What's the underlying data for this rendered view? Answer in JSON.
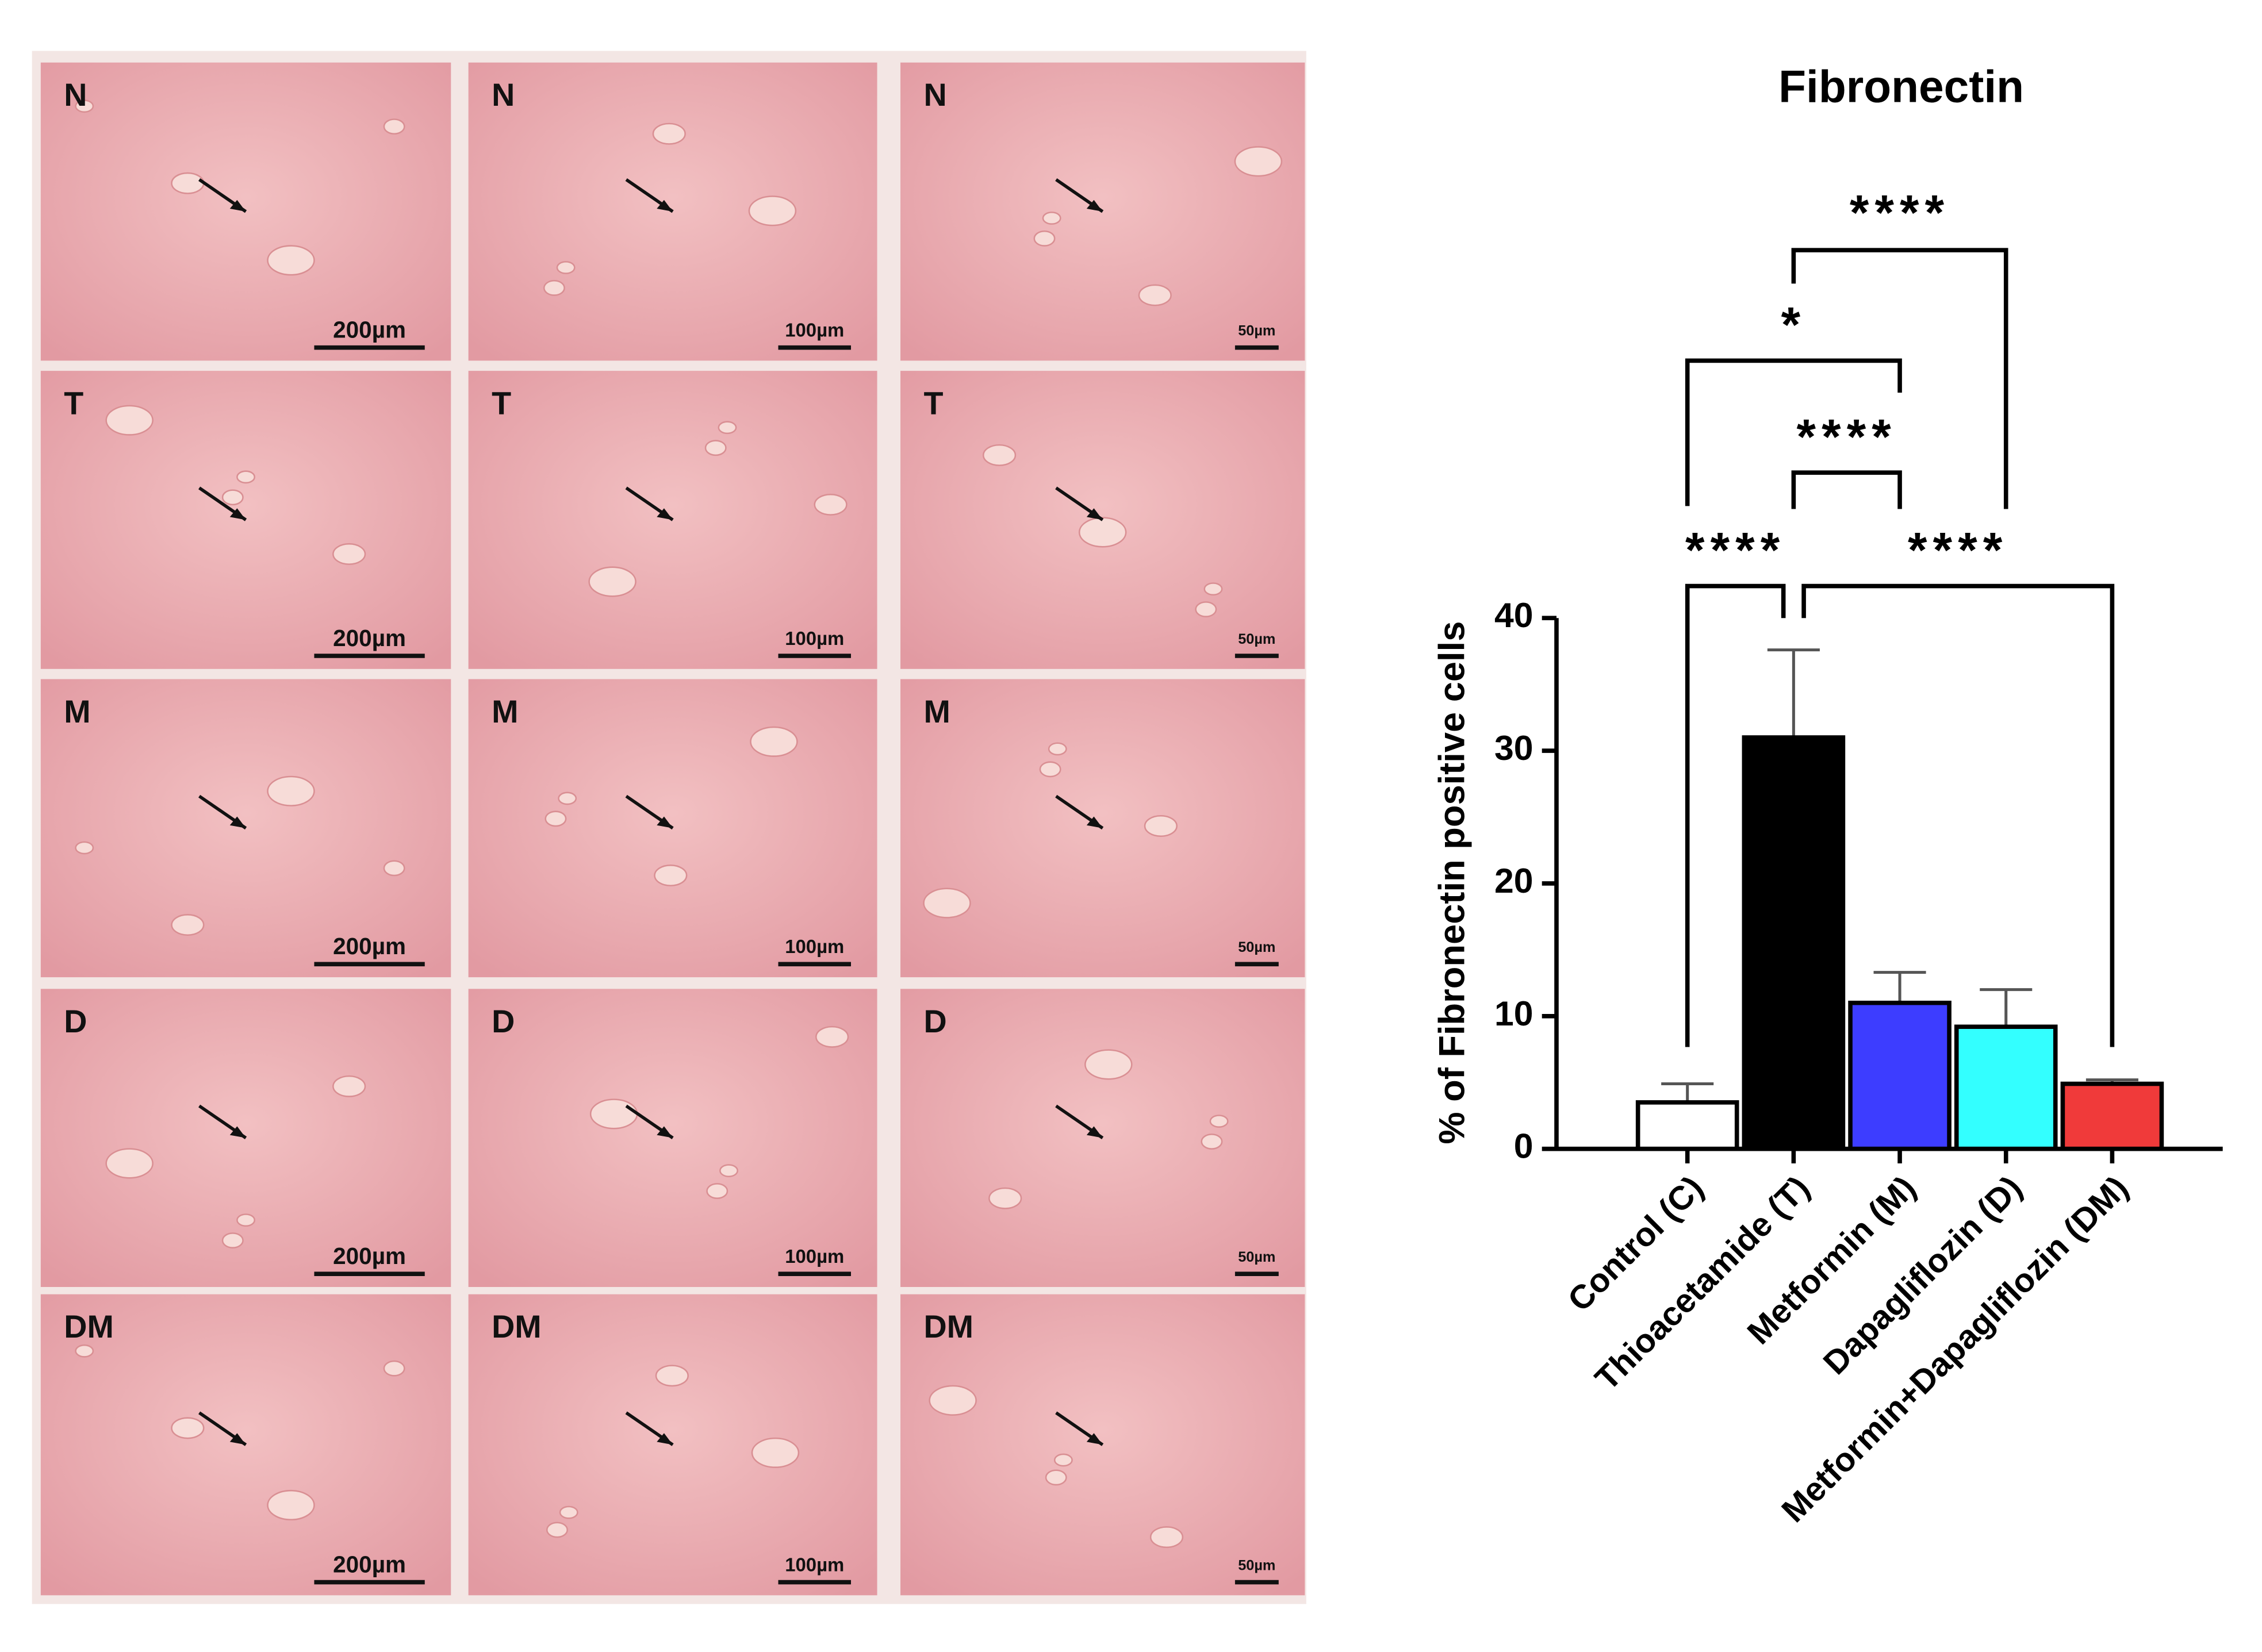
{
  "figure_panel": {
    "row_labels": [
      "N",
      "T",
      "M",
      "D",
      "DM"
    ],
    "scale_bars": [
      "200µm",
      "100µm",
      "50µm"
    ]
  },
  "chart_data": {
    "type": "bar",
    "title": "Fibronectin",
    "y_label": "% of Fibronectin positive cells",
    "categories": [
      "Control (C)",
      "Thioacetamide (T)",
      "Metformin (M)",
      "Dapagliflozin (D)",
      "Metformin+Dapagliflozin (DM)"
    ],
    "values": [
      3.5,
      31,
      11,
      9.2,
      4.9
    ],
    "errors": [
      1.4,
      6.6,
      2.3,
      2.8,
      0.3
    ],
    "colors": [
      "#ffffff",
      "#000000",
      "#3d3dff",
      "#33ffff",
      "#f03a3a"
    ],
    "ylim": [
      0,
      40
    ],
    "yticks": [
      0,
      10,
      20,
      30,
      40
    ],
    "significance": [
      {
        "groups": [
          "Control (C)",
          "Thioacetamide (T)"
        ],
        "label": "****"
      },
      {
        "groups": [
          "Thioacetamide (T)",
          "Metformin+Dapagliflozin (DM)"
        ],
        "label": "****"
      },
      {
        "groups": [
          "Thioacetamide (T)",
          "Metformin (M)"
        ],
        "label": "****"
      },
      {
        "groups": [
          "Control (C)",
          "Metformin (M)"
        ],
        "label": "*"
      },
      {
        "groups": [
          "Thioacetamide (T)",
          "Dapagliflozin (D)"
        ],
        "label": "****"
      }
    ]
  }
}
